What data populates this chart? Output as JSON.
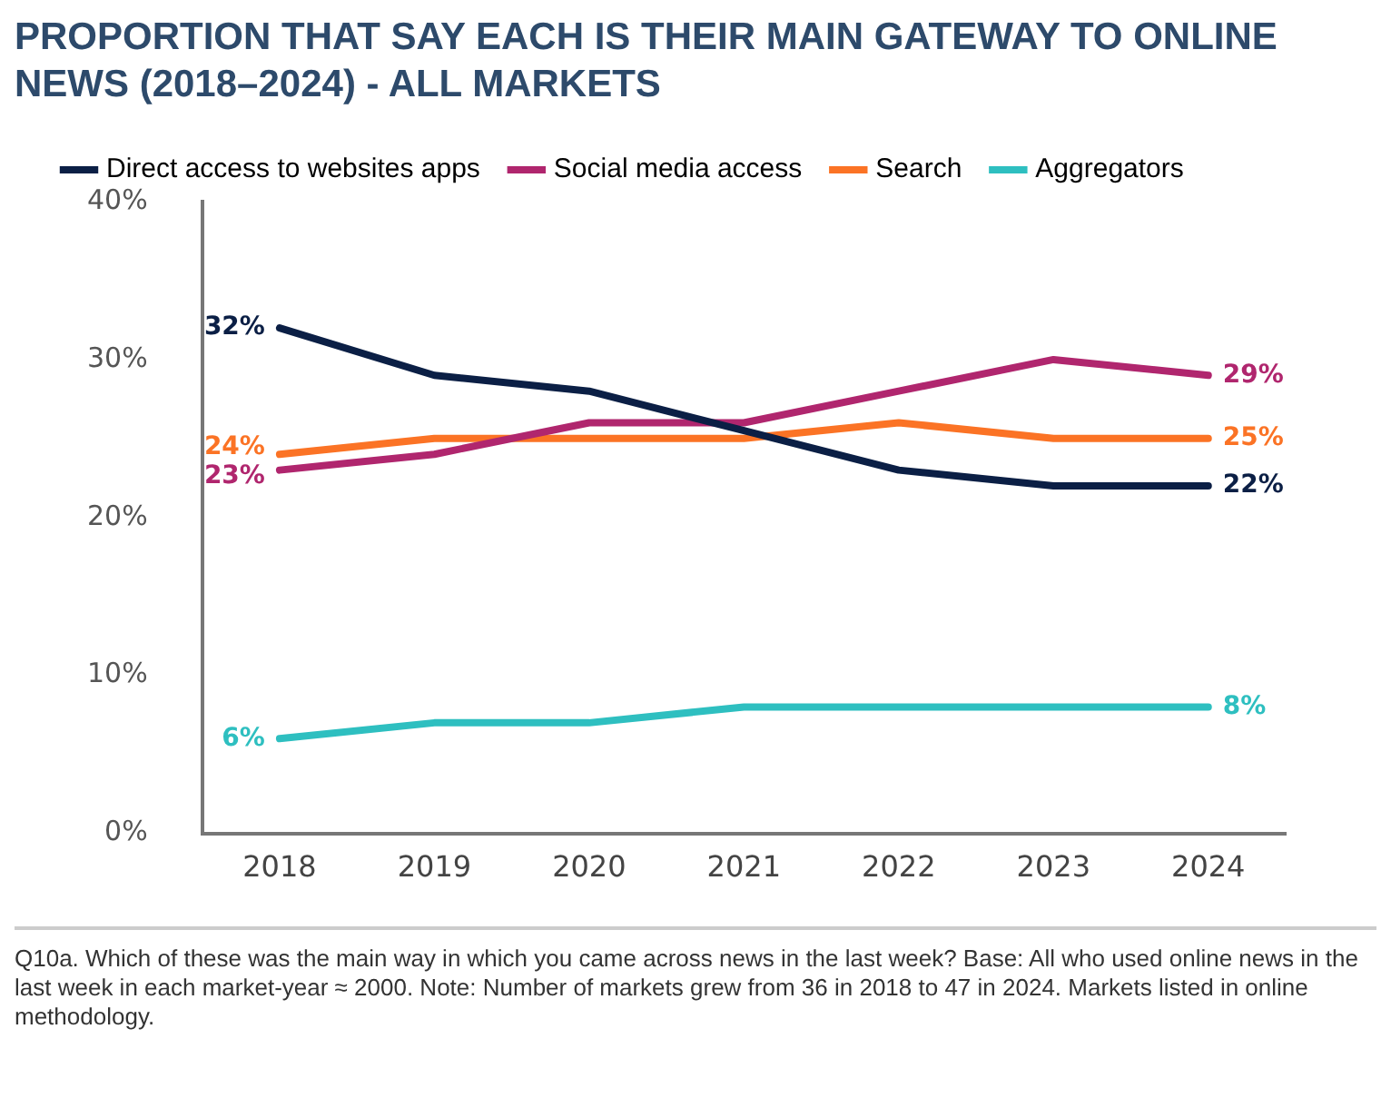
{
  "chart_data": {
    "type": "line",
    "title": "PROPORTION THAT SAY EACH IS THEIR MAIN GATEWAY TO ONLINE NEWS (2018–2024) - ALL MARKETS",
    "categories": [
      "2018",
      "2019",
      "2020",
      "2021",
      "2022",
      "2023",
      "2024"
    ],
    "series": [
      {
        "name": "Direct access to websites apps",
        "color": "#0b1f45",
        "values": [
          32,
          29,
          28,
          25.5,
          23,
          22,
          22
        ],
        "value_labels": [
          "32%",
          null,
          null,
          null,
          null,
          null,
          "22%"
        ]
      },
      {
        "name": "Social media access",
        "color": "#b0266e",
        "values": [
          23,
          24,
          26,
          26,
          28,
          30,
          29
        ],
        "value_labels": [
          "23%",
          null,
          null,
          null,
          null,
          null,
          "29%"
        ]
      },
      {
        "name": "Search",
        "color": "#fb7325",
        "values": [
          24,
          25,
          25,
          25,
          26,
          25,
          25
        ],
        "value_labels": [
          "24%",
          null,
          null,
          null,
          null,
          null,
          "25%"
        ]
      },
      {
        "name": "Aggregators",
        "color": "#2ebfc0",
        "values": [
          6,
          7,
          7,
          8,
          8,
          8,
          8
        ],
        "value_labels": [
          "6%",
          null,
          null,
          null,
          null,
          null,
          "8%"
        ]
      }
    ],
    "ylim": [
      0,
      40
    ],
    "yticks": [
      {
        "value": 0,
        "label": "0%"
      },
      {
        "value": 10,
        "label": "10%"
      },
      {
        "value": 20,
        "label": "20%"
      },
      {
        "value": 30,
        "label": "30%"
      },
      {
        "value": 40,
        "label": "40%"
      }
    ],
    "grid": false,
    "legend": "top",
    "marker": "none",
    "line_style": "solid",
    "annotations": [
      "Q10a. Which of these was the main way in which you came across news in the last week? Base: All who used online news in the last week in each market-year ≈ 2000. Note: Number of markets grew from 36 in 2018 to 47 in 2024. Markets listed in online methodology."
    ]
  }
}
